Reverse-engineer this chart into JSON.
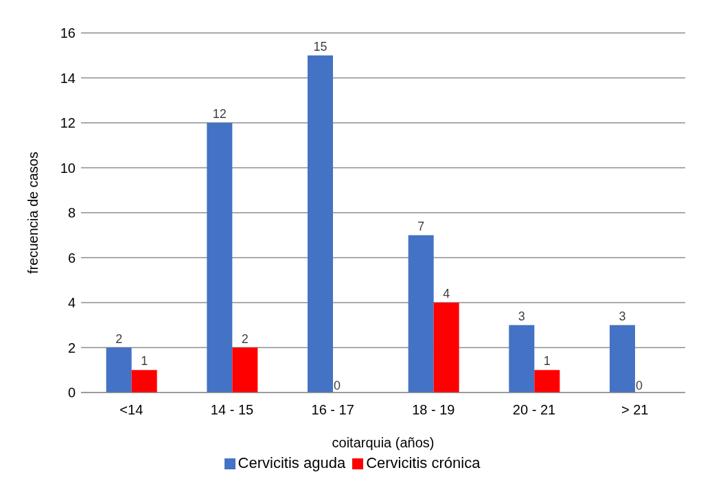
{
  "chart_data": {
    "type": "bar",
    "categories": [
      "<14",
      "14 - 15",
      "16 - 17",
      "18 - 19",
      "20 - 21",
      "> 21"
    ],
    "series": [
      {
        "name": "Cervicitis aguda",
        "color": "#4472c4",
        "values": [
          2,
          12,
          15,
          7,
          3,
          3
        ]
      },
      {
        "name": "Cervicitis crónica",
        "color": "#ff0000",
        "values": [
          1,
          2,
          0,
          4,
          1,
          0
        ]
      }
    ],
    "xlabel": "coitarquia (años)",
    "ylabel": "frecuencia de casos",
    "ylim": [
      0,
      16
    ],
    "yticks": [
      0,
      2,
      4,
      6,
      8,
      10,
      12,
      14,
      16
    ],
    "grid": "y",
    "legend": "bottom",
    "data_labels": true
  }
}
